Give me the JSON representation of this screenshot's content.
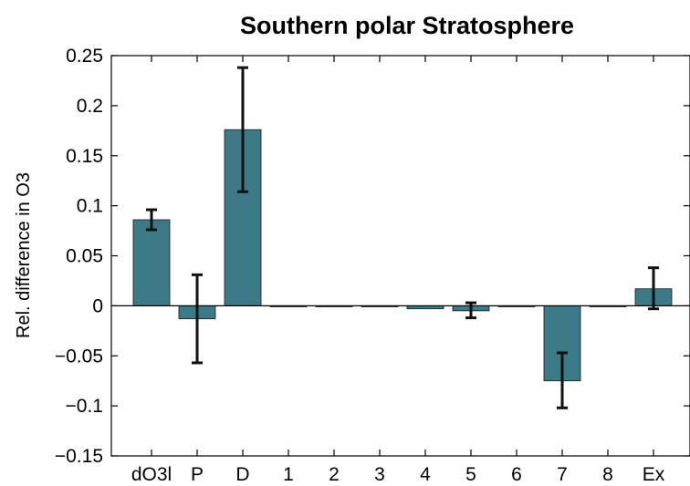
{
  "chart_data": {
    "type": "bar",
    "title": "Southern polar Stratosphere",
    "xlabel": "",
    "ylabel": "Rel. difference in O3",
    "categories": [
      "dO3l",
      "P",
      "D",
      "1",
      "2",
      "3",
      "4",
      "5",
      "6",
      "7",
      "8",
      "Ex"
    ],
    "values": [
      0.086,
      -0.013,
      0.176,
      -0.001,
      -0.001,
      -0.001,
      -0.003,
      -0.005,
      -0.001,
      -0.075,
      -0.001,
      0.017
    ],
    "error_low": [
      0.076,
      -0.057,
      0.114,
      -0.001,
      -0.001,
      -0.001,
      -0.003,
      -0.012,
      -0.001,
      -0.102,
      -0.001,
      -0.003
    ],
    "error_high": [
      0.096,
      0.031,
      0.238,
      -0.001,
      -0.001,
      -0.001,
      -0.003,
      0.003,
      -0.001,
      -0.047,
      -0.001,
      0.038
    ],
    "ylim": [
      -0.15,
      0.25
    ],
    "yticks": [
      "0.25",
      "0.2",
      "0.15",
      "0.1",
      "0.05",
      "0",
      "−0.05",
      "−0.1",
      "−0.15"
    ],
    "ytick_values": [
      0.25,
      0.2,
      0.15,
      0.1,
      0.05,
      0,
      -0.05,
      -0.1,
      -0.15
    ],
    "bar_color": "#3b7a86",
    "grid": false,
    "legend": "none"
  }
}
